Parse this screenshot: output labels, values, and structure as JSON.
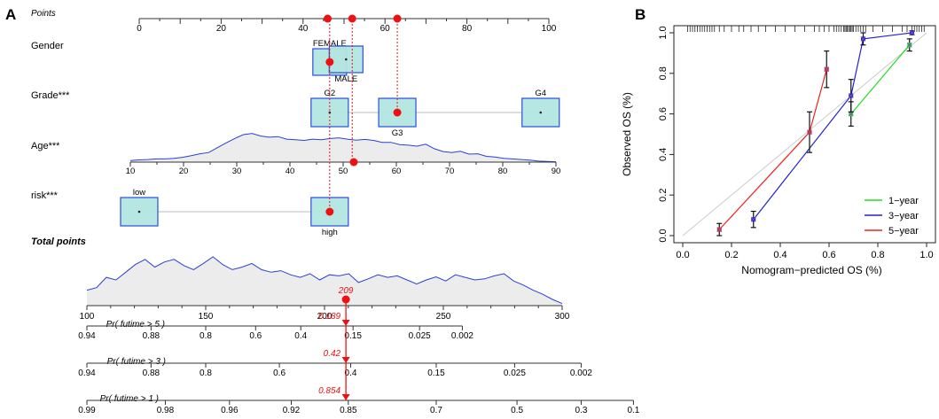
{
  "panel_labels": [
    "A",
    "B"
  ],
  "chart_data": [
    {
      "type": "nomogram",
      "panel": "A",
      "points_axis": {
        "label": "Points",
        "range": [
          0,
          100
        ],
        "ticks": [
          0,
          20,
          40,
          60,
          80,
          100
        ],
        "markers": [
          46,
          52,
          63
        ]
      },
      "variables": [
        {
          "name": "Gender",
          "kind": "box",
          "axis_range": [
            0,
            100
          ],
          "levels": [
            {
              "label": "FEMALE",
              "points": 46.5,
              "label_pos": "above"
            },
            {
              "label": "MALE",
              "points": 50.5,
              "label_pos": "below"
            }
          ],
          "selected_points": 46.5
        },
        {
          "name": "Grade***",
          "kind": "box",
          "axis_range": [
            0,
            100
          ],
          "levels": [
            {
              "label": "G2",
              "points": 46.5,
              "label_pos": "above"
            },
            {
              "label": "G3",
              "points": 63,
              "label_pos": "below"
            },
            {
              "label": "G4",
              "points": 98,
              "label_pos": "above"
            }
          ],
          "selected_points": 63
        },
        {
          "name": "Age***",
          "kind": "density",
          "axis_range": [
            10,
            90
          ],
          "ticks": [
            10,
            20,
            30,
            40,
            50,
            60,
            70,
            80,
            90
          ],
          "selected_value": 52,
          "density": [
            0.05,
            0.07,
            0.08,
            0.1,
            0.1,
            0.12,
            0.15,
            0.2,
            0.26,
            0.3,
            0.45,
            0.6,
            0.74,
            0.86,
            0.9,
            0.82,
            0.78,
            0.8,
            0.72,
            0.7,
            0.68,
            0.72,
            0.7,
            0.74,
            0.76,
            0.72,
            0.69,
            0.71,
            0.68,
            0.62,
            0.62,
            0.55,
            0.53,
            0.5,
            0.56,
            0.42,
            0.33,
            0.3,
            0.34,
            0.25,
            0.26,
            0.18,
            0.16,
            0.12,
            0.1,
            0.08,
            0.06,
            0.03,
            0.02,
            0.01
          ]
        },
        {
          "name": "risk***",
          "kind": "box",
          "axis_range": [
            0,
            100
          ],
          "levels": [
            {
              "label": "low",
              "points": 0,
              "label_pos": "above"
            },
            {
              "label": "high",
              "points": 46.5,
              "label_pos": "below"
            }
          ],
          "selected_points": 46.5
        }
      ],
      "total_points": {
        "label": "Total points",
        "range": [
          100,
          300
        ],
        "ticks": [
          100,
          150,
          200,
          250,
          300
        ],
        "selected": 209,
        "selected_label": "209",
        "density": [
          0.3,
          0.35,
          0.55,
          0.5,
          0.65,
          0.8,
          0.9,
          0.75,
          0.85,
          0.9,
          0.78,
          0.7,
          0.82,
          0.95,
          0.8,
          0.7,
          0.75,
          0.82,
          0.7,
          0.65,
          0.68,
          0.6,
          0.55,
          0.62,
          0.5,
          0.6,
          0.58,
          0.62,
          0.45,
          0.52,
          0.6,
          0.55,
          0.58,
          0.5,
          0.42,
          0.5,
          0.56,
          0.48,
          0.6,
          0.55,
          0.5,
          0.52,
          0.58,
          0.62,
          0.48,
          0.4,
          0.3,
          0.22,
          0.12,
          0.04
        ]
      },
      "probability_axes": [
        {
          "label": "Pr( futime > 5 )",
          "value_label": "0.189",
          "ticks": [
            "0.94",
            "0.88",
            "0.8",
            "0.6",
            "0.4",
            "0.15",
            "0.025",
            "0.002"
          ],
          "tick_totals": [
            100,
            127,
            150,
            171,
            190,
            212,
            240,
            258
          ]
        },
        {
          "label": "Pr( futime > 3 )",
          "value_label": "0.42",
          "ticks": [
            "0.94",
            "0.88",
            "0.8",
            "0.6",
            "0.4",
            "0.15",
            "0.025",
            "0.002"
          ],
          "tick_totals": [
            100,
            127,
            150,
            181,
            211,
            247,
            280,
            308
          ]
        },
        {
          "label": "Pr( futime > 1 )",
          "value_label": "0.854",
          "ticks": [
            "0.99",
            "0.98",
            "0.96",
            "0.92",
            "0.85",
            "0.7",
            "0.5",
            "0.3",
            "0.1"
          ],
          "tick_totals": [
            100,
            133,
            160,
            186,
            210,
            247,
            281,
            308,
            330
          ]
        }
      ]
    },
    {
      "type": "line",
      "panel": "B",
      "title": "",
      "xlabel": "Nomogram−predicted OS (%)",
      "ylabel": "Observed OS (%)",
      "xlim": [
        0,
        1
      ],
      "ylim": [
        0,
        1
      ],
      "xticks": [
        0.0,
        0.2,
        0.4,
        0.6,
        0.8,
        1.0
      ],
      "yticks": [
        0.0,
        0.2,
        0.4,
        0.6,
        0.8,
        1.0
      ],
      "reference_line": [
        [
          0,
          0
        ],
        [
          1,
          1
        ]
      ],
      "legend_position": "bottom-right",
      "series": [
        {
          "name": "1−year",
          "color": "#22dd22",
          "points": [
            [
              0.69,
              0.6,
              0.06
            ],
            [
              0.93,
              0.94,
              0.03
            ]
          ]
        },
        {
          "name": "3−year",
          "color": "#2222cc",
          "points": [
            [
              0.29,
              0.08,
              0.04
            ],
            [
              0.69,
              0.69,
              0.08
            ],
            [
              0.74,
              0.97,
              0.03
            ],
            [
              0.94,
              1.0,
              0.01
            ]
          ]
        },
        {
          "name": "5−year",
          "color": "#ee2222",
          "points": [
            [
              0.15,
              0.03,
              0.03
            ],
            [
              0.52,
              0.51,
              0.1
            ],
            [
              0.59,
              0.82,
              0.09
            ]
          ]
        }
      ],
      "rug_values": [
        0.02,
        0.03,
        0.04,
        0.05,
        0.06,
        0.07,
        0.08,
        0.09,
        0.1,
        0.11,
        0.12,
        0.13,
        0.15,
        0.17,
        0.2,
        0.23,
        0.25,
        0.28,
        0.31,
        0.34,
        0.38,
        0.42,
        0.46,
        0.5,
        0.54,
        0.56,
        0.58,
        0.6,
        0.62,
        0.63,
        0.64,
        0.65,
        0.66,
        0.665,
        0.67,
        0.675,
        0.68,
        0.685,
        0.69,
        0.695,
        0.7,
        0.71,
        0.72,
        0.73,
        0.74,
        0.75,
        0.78,
        0.82,
        0.86,
        0.9,
        0.92,
        0.94,
        0.95,
        0.96,
        0.97,
        0.98,
        0.99
      ]
    }
  ]
}
